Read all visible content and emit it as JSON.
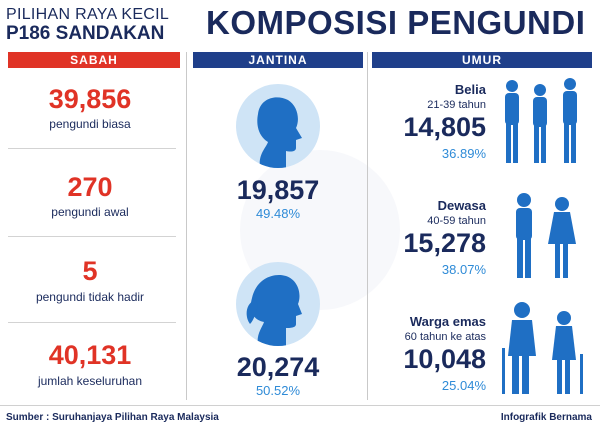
{
  "header": {
    "line1": "PILIHAN RAYA KECIL",
    "line2": "P186 SANDAKAN",
    "title": "KOMPOSISI PENGUNDI"
  },
  "colors": {
    "navy": "#1a2a5c",
    "red": "#e03326",
    "blue": "#1f6fc4",
    "lightblue": "#2f8bd7",
    "circle": "#cfe4f6"
  },
  "columns": {
    "sabah": "SABAH",
    "jantina": "JANTINA",
    "umur": "UMUR"
  },
  "sabah": [
    {
      "value": "39,856",
      "label": "pengundi biasa"
    },
    {
      "value": "270",
      "label": "pengundi awal"
    },
    {
      "value": "5",
      "label": "pengundi tidak hadir"
    },
    {
      "value": "40,131",
      "label": "jumlah keseluruhan"
    }
  ],
  "jantina": {
    "male": {
      "icon": "male-head-icon",
      "value": "19,857",
      "percent": "49.48%"
    },
    "female": {
      "icon": "female-head-icon",
      "value": "20,274",
      "percent": "50.52%"
    }
  },
  "umur": [
    {
      "title": "Belia",
      "range": "21-39 tahun",
      "value": "14,805",
      "percent": "36.89%",
      "icon": "youth-group-icon"
    },
    {
      "title": "Dewasa",
      "range": "40-59 tahun",
      "value": "15,278",
      "percent": "38.07%",
      "icon": "adult-couple-icon"
    },
    {
      "title": "Warga emas",
      "range": "60 tahun ke atas",
      "value": "10,048",
      "percent": "25.04%",
      "icon": "elderly-couple-icon"
    }
  ],
  "footer": {
    "source": "Sumber : Suruhanjaya Pilihan Raya Malaysia",
    "credit": "Infografik Bernama"
  }
}
